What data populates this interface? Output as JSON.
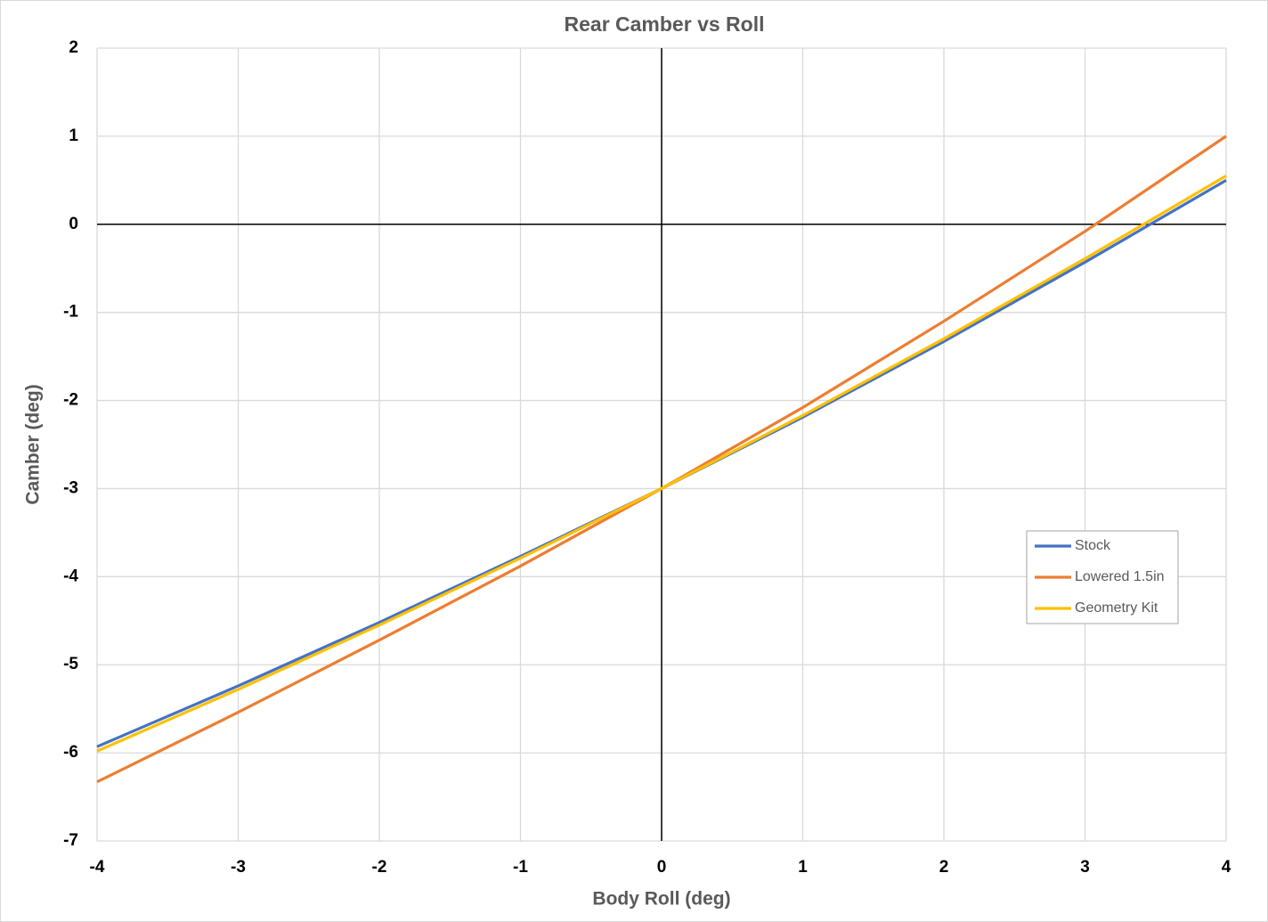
{
  "chart_data": {
    "type": "line",
    "title": "Rear Camber vs Roll",
    "x_label": "Body Roll (deg)",
    "y_label": "Camber (deg)",
    "x": [
      -4,
      -3,
      -2,
      -1,
      0,
      1,
      2,
      3,
      4
    ],
    "series": [
      {
        "name": "Stock",
        "color": "#4472c4",
        "values": [
          -5.93,
          -5.24,
          -4.52,
          -3.77,
          -3.0,
          -2.19,
          -1.33,
          -0.43,
          0.5
        ]
      },
      {
        "name": "Lowered 1.5in",
        "color": "#ed7d31",
        "values": [
          -6.33,
          -5.54,
          -4.72,
          -3.88,
          -3.0,
          -2.08,
          -1.1,
          -0.08,
          1.0
        ]
      },
      {
        "name": "Geometry Kit",
        "color": "#ffc000",
        "values": [
          -5.98,
          -5.28,
          -4.55,
          -3.79,
          -3.0,
          -2.17,
          -1.3,
          -0.39,
          0.55
        ]
      }
    ],
    "xlim": [
      -4,
      4
    ],
    "ylim": [
      -7,
      2
    ],
    "xticks": [
      -4,
      -3,
      -2,
      -1,
      0,
      1,
      2,
      3,
      4
    ],
    "yticks": [
      -7,
      -6,
      -5,
      -4,
      -3,
      -2,
      -1,
      0,
      1,
      2
    ],
    "grid": true,
    "zero_lines": true,
    "legend": "right"
  }
}
